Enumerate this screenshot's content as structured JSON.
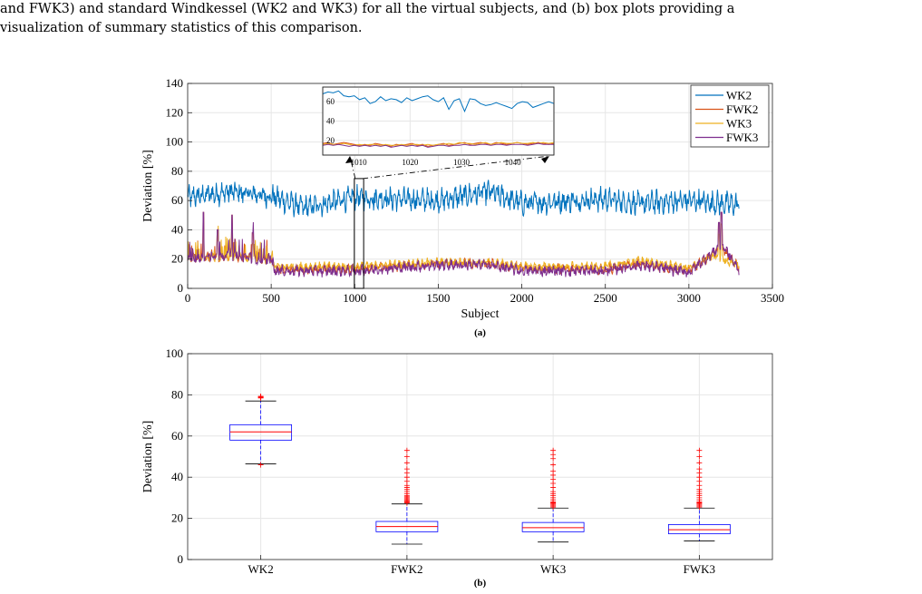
{
  "caption": {
    "line1": "and FWK3) and standard Windkessel (WK2 and WK3) for all the virtual subjects, and (b) box plots providing a",
    "line2": "visualization of summary statistics of this comparison."
  },
  "chart_data": [
    {
      "type": "line",
      "panel_label": "(a)",
      "xlabel": "Subject",
      "ylabel": "Deviation [%]",
      "xlim": [
        0,
        3500
      ],
      "ylim": [
        0,
        140
      ],
      "xticks": [
        "0",
        "500",
        "1000",
        "1500",
        "2000",
        "2500",
        "3000",
        "3500"
      ],
      "yticks": [
        "0",
        "20",
        "40",
        "60",
        "80",
        "100",
        "120",
        "140"
      ],
      "grid": true,
      "legend": "top-right",
      "n_subjects": 3300,
      "series": [
        {
          "name": "WK2",
          "color": "#0072BD",
          "profile": [
            [
              0,
              62
            ],
            [
              250,
              66
            ],
            [
              500,
              63
            ],
            [
              700,
              55
            ],
            [
              1000,
              62
            ],
            [
              1500,
              60
            ],
            [
              1800,
              66
            ],
            [
              2000,
              58
            ],
            [
              2500,
              61
            ],
            [
              2700,
              58
            ],
            [
              3000,
              60
            ],
            [
              3300,
              57
            ]
          ],
          "noise": 5.5,
          "period": 28,
          "amp": 4
        },
        {
          "name": "FWK2",
          "color": "#D95319",
          "profile": [
            [
              0,
              21
            ],
            [
              250,
              22
            ],
            [
              500,
              20
            ],
            [
              520,
              13
            ],
            [
              1000,
              13
            ],
            [
              1500,
              17
            ],
            [
              1800,
              17
            ],
            [
              2000,
              14
            ],
            [
              2500,
              13
            ],
            [
              2700,
              17
            ],
            [
              3000,
              12
            ],
            [
              3150,
              24
            ],
            [
              3200,
              27
            ],
            [
              3300,
              14
            ]
          ],
          "noise": 2.5,
          "period": 28,
          "amp": 1.5
        },
        {
          "name": "WK3",
          "color": "#EDB120",
          "profile": [
            [
              0,
              20
            ],
            [
              250,
              22
            ],
            [
              500,
              19
            ],
            [
              520,
              15
            ],
            [
              1000,
              15
            ],
            [
              1500,
              18
            ],
            [
              1800,
              18
            ],
            [
              2000,
              15
            ],
            [
              2500,
              15
            ],
            [
              2700,
              19
            ],
            [
              3000,
              14
            ],
            [
              3150,
              22
            ],
            [
              3300,
              16
            ]
          ],
          "noise": 2.0,
          "period": 28,
          "amp": 1.5
        },
        {
          "name": "FWK3",
          "color": "#7E2F8E",
          "profile": [
            [
              0,
              20
            ],
            [
              250,
              23
            ],
            [
              500,
              19
            ],
            [
              520,
              12
            ],
            [
              1000,
              12
            ],
            [
              1500,
              16
            ],
            [
              1800,
              16
            ],
            [
              2000,
              12
            ],
            [
              2500,
              12
            ],
            [
              2700,
              16
            ],
            [
              3000,
              11
            ],
            [
              3150,
              25
            ],
            [
              3200,
              30
            ],
            [
              3300,
              12
            ]
          ],
          "noise": 3.0,
          "period": 28,
          "amp": 1.5
        }
      ],
      "spikes": [
        [
          95,
          52
        ],
        [
          265,
          50
        ],
        [
          180,
          40
        ],
        [
          390,
          38
        ],
        [
          3195,
          52
        ],
        [
          3180,
          45
        ]
      ],
      "highlight_range": [
        1003,
        1048
      ],
      "inset": {
        "xlim": [
          1003,
          1048
        ],
        "ylim": [
          5,
          75
        ],
        "xticks": [
          "1010",
          "1020",
          "1030",
          "1040"
        ],
        "yticks": [
          "20",
          "40",
          "60"
        ],
        "series": [
          {
            "name": "WK2",
            "values": [
              68,
              70,
              69,
              71,
              66,
              65,
              66,
              62,
              64,
              58,
              60,
              65,
              61,
              63,
              62,
              59,
              64,
              61,
              63,
              65,
              66,
              62,
              60,
              64,
              52,
              61,
              63,
              50,
              63,
              62,
              58,
              56,
              57,
              59,
              57,
              55,
              53,
              58,
              60,
              59,
              54,
              56,
              58,
              60,
              58
            ]
          },
          {
            "name": "FWK2",
            "values": [
              17,
              18,
              16,
              17,
              18,
              17,
              16,
              15,
              16,
              15,
              17,
              16,
              15,
              14,
              16,
              15,
              16,
              17,
              15,
              16,
              14,
              15,
              16,
              17,
              15,
              16,
              17,
              18,
              16,
              17,
              18,
              17,
              16,
              18,
              17,
              16,
              17,
              18,
              17,
              16,
              17,
              18,
              17,
              16,
              17
            ]
          },
          {
            "name": "WK3",
            "values": [
              16,
              17,
              16,
              16,
              17,
              16,
              15,
              16,
              15,
              16,
              16,
              15,
              16,
              15,
              15,
              16,
              15,
              16,
              16,
              15,
              16,
              15,
              16,
              16,
              17,
              16,
              18,
              17,
              17,
              16,
              17,
              18,
              16,
              17,
              18,
              17,
              17,
              18,
              17,
              17,
              18,
              17,
              18,
              17,
              18
            ]
          },
          {
            "name": "FWK3",
            "values": [
              15,
              16,
              15,
              16,
              15,
              14,
              15,
              14,
              15,
              14,
              15,
              14,
              15,
              13,
              14,
              15,
              14,
              15,
              14,
              15,
              13,
              14,
              15,
              15,
              14,
              15,
              15,
              16,
              15,
              15,
              16,
              16,
              15,
              16,
              16,
              15,
              16,
              16,
              16,
              15,
              16,
              17,
              16,
              16,
              16
            ]
          }
        ]
      }
    },
    {
      "type": "box",
      "panel_label": "(b)",
      "ylabel": "Deviation [%]",
      "ylim": [
        0,
        100
      ],
      "yticks": [
        "0",
        "20",
        "40",
        "60",
        "80",
        "100"
      ],
      "categories": [
        "WK2",
        "FWK2",
        "WK3",
        "FWK3"
      ],
      "grid": true,
      "box_color": "#0000FF",
      "median_color": "#FF0000",
      "outlier_color": "#FF0000",
      "boxes": [
        {
          "name": "WK2",
          "whisker_low": 46.5,
          "q1": 58,
          "median": 62,
          "q3": 65.5,
          "whisker_high": 77,
          "outliers": [
            78.5,
            79,
            79.3,
            78.8,
            46
          ]
        },
        {
          "name": "FWK2",
          "whisker_low": 7.5,
          "q1": 13.5,
          "median": 16,
          "q3": 18.5,
          "whisker_high": 27,
          "outliers": [
            27.5,
            28,
            28.5,
            29,
            29.5,
            30,
            30.5,
            31,
            32,
            33,
            34,
            35,
            36,
            38,
            40,
            42,
            44,
            47,
            50,
            53
          ]
        },
        {
          "name": "WK3",
          "whisker_low": 8.5,
          "q1": 13.5,
          "median": 15.5,
          "q3": 18,
          "whisker_high": 25,
          "outliers": [
            25.5,
            26,
            26.5,
            27,
            27.5,
            28,
            29,
            30,
            31,
            32,
            33,
            35,
            37,
            39,
            41,
            43,
            46,
            49,
            51,
            53
          ]
        },
        {
          "name": "FWK3",
          "whisker_low": 9,
          "q1": 12.5,
          "median": 14.5,
          "q3": 17,
          "whisker_high": 25,
          "outliers": [
            25.5,
            26,
            26.5,
            27,
            27.5,
            28,
            29,
            30,
            31,
            32,
            33,
            34,
            36,
            38,
            40,
            42,
            44,
            47,
            50,
            53
          ]
        }
      ]
    }
  ]
}
